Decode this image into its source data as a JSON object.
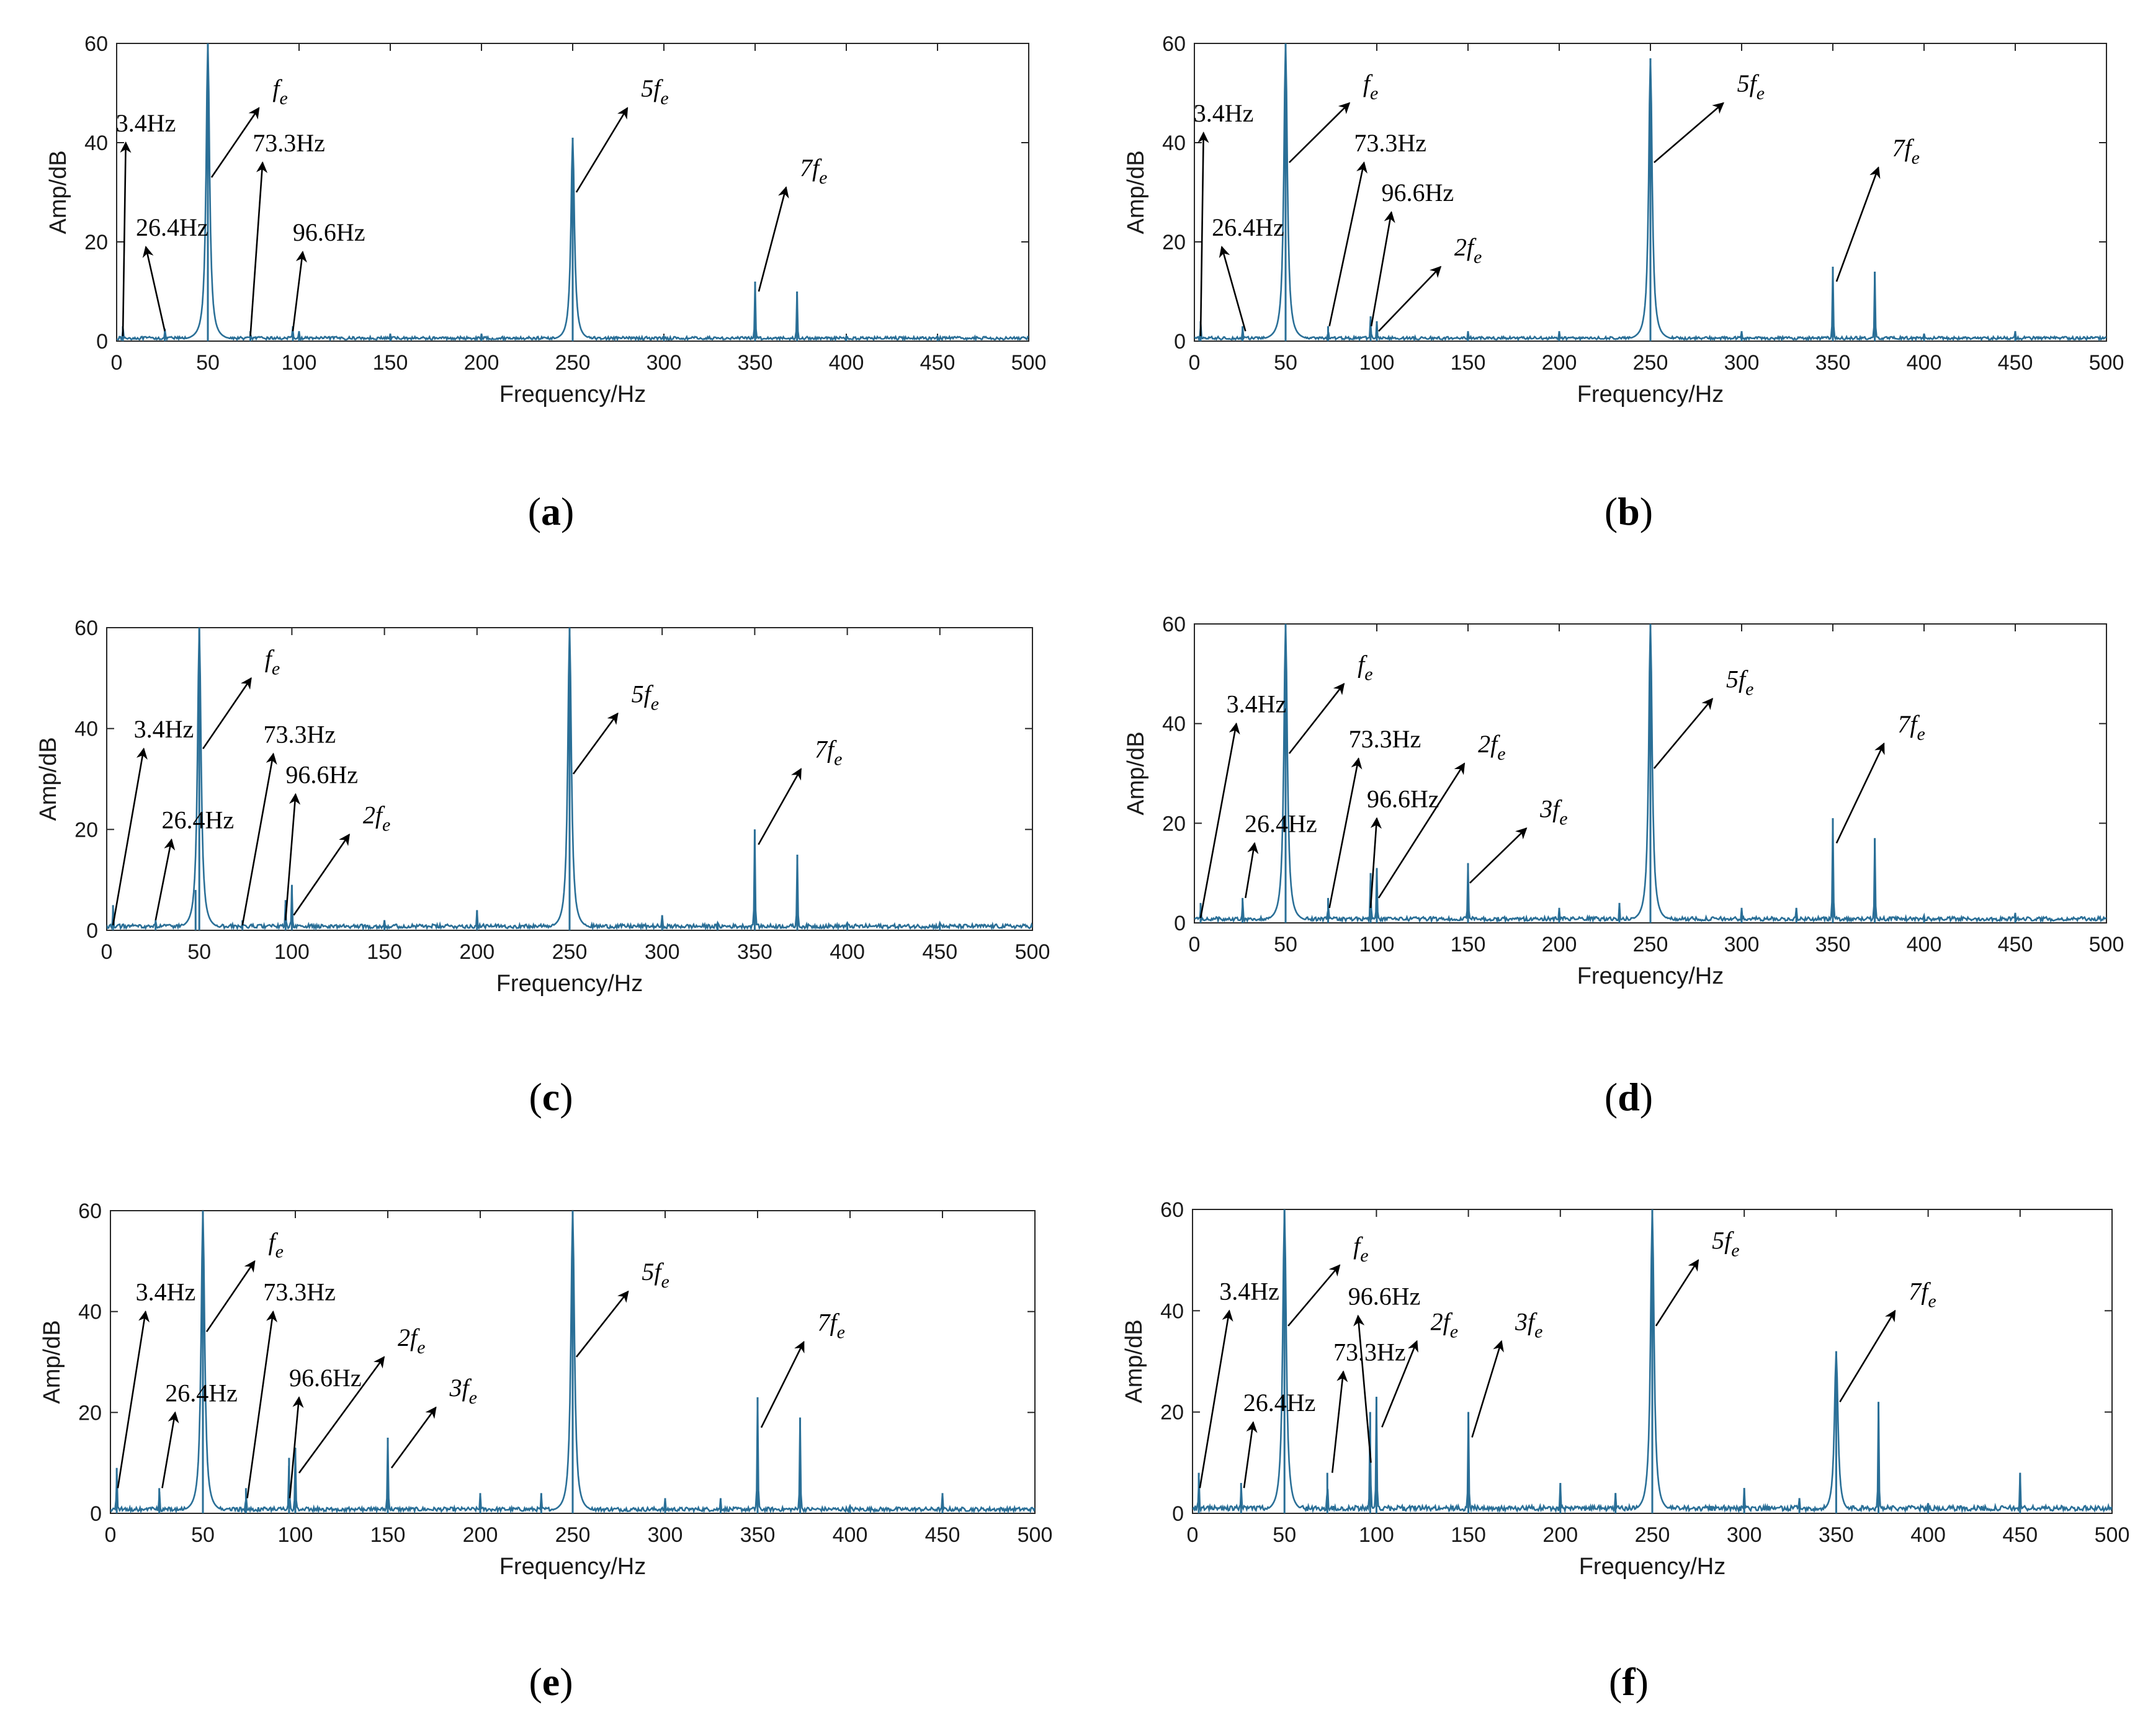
{
  "chart_data": [
    {
      "type": "line",
      "panel_label": "(a)",
      "panel_letter": "a",
      "xlabel": "Frequency/Hz",
      "ylabel": "Amp/dB",
      "xlim": [
        0,
        500
      ],
      "ylim": [
        0,
        60
      ],
      "xticks": [
        0,
        50,
        100,
        150,
        200,
        250,
        300,
        350,
        400,
        450,
        500
      ],
      "yticks": [
        0,
        20,
        40,
        60
      ],
      "color": "#2a6f97",
      "baseline": 0.6,
      "peaks": [
        {
          "x": 3.4,
          "y": 3
        },
        {
          "x": 26.4,
          "y": 2.5
        },
        {
          "x": 50,
          "y": 60
        },
        {
          "x": 73.3,
          "y": 2
        },
        {
          "x": 96.6,
          "y": 3
        },
        {
          "x": 100,
          "y": 2
        },
        {
          "x": 150,
          "y": 1.5
        },
        {
          "x": 200,
          "y": 1.5
        },
        {
          "x": 250,
          "y": 41
        },
        {
          "x": 300,
          "y": 1
        },
        {
          "x": 350,
          "y": 12
        },
        {
          "x": 373,
          "y": 10
        },
        {
          "x": 400,
          "y": 1
        },
        {
          "x": 450,
          "y": 1
        }
      ],
      "annotations": [
        {
          "text": "3.4Hz",
          "x": 3.4,
          "y": 1,
          "lx": 5,
          "ly": 40
        },
        {
          "text": "26.4Hz",
          "x": 26.4,
          "y": 2,
          "lx": 16,
          "ly": 19
        },
        {
          "text": "f",
          "sub": "e",
          "x": 52,
          "y": 33,
          "lx": 78,
          "ly": 47
        },
        {
          "text": "73.3Hz",
          "x": 73.3,
          "y": 1,
          "lx": 80,
          "ly": 36
        },
        {
          "text": "96.6Hz",
          "x": 96.6,
          "y": 2,
          "lx": 102,
          "ly": 18
        },
        {
          "text": "5f",
          "sub": "e",
          "x": 252,
          "y": 30,
          "lx": 280,
          "ly": 47
        },
        {
          "text": "7f",
          "sub": "e",
          "x": 352,
          "y": 10,
          "lx": 367,
          "ly": 31
        }
      ]
    },
    {
      "type": "line",
      "panel_label": "(b)",
      "panel_letter": "b",
      "xlabel": "Frequency/Hz",
      "ylabel": "Amp/dB",
      "xlim": [
        0,
        500
      ],
      "ylim": [
        0,
        60
      ],
      "xticks": [
        0,
        50,
        100,
        150,
        200,
        250,
        300,
        350,
        400,
        450,
        500
      ],
      "yticks": [
        0,
        20,
        40,
        60
      ],
      "color": "#2a6f97",
      "baseline": 0.6,
      "peaks": [
        {
          "x": 3.4,
          "y": 4
        },
        {
          "x": 26.4,
          "y": 3
        },
        {
          "x": 50,
          "y": 60
        },
        {
          "x": 73.3,
          "y": 3
        },
        {
          "x": 96.6,
          "y": 5
        },
        {
          "x": 100,
          "y": 4
        },
        {
          "x": 150,
          "y": 2
        },
        {
          "x": 200,
          "y": 2
        },
        {
          "x": 250,
          "y": 57
        },
        {
          "x": 300,
          "y": 2
        },
        {
          "x": 350,
          "y": 15
        },
        {
          "x": 373,
          "y": 14
        },
        {
          "x": 400,
          "y": 1.5
        },
        {
          "x": 450,
          "y": 2
        }
      ],
      "annotations": [
        {
          "text": "3.4Hz",
          "x": 3.4,
          "y": 1,
          "lx": 5,
          "ly": 42
        },
        {
          "text": "26.4Hz",
          "x": 28,
          "y": 2,
          "lx": 15,
          "ly": 19
        },
        {
          "text": "f",
          "sub": "e",
          "x": 52,
          "y": 36,
          "lx": 85,
          "ly": 48
        },
        {
          "text": "73.3Hz",
          "x": 74,
          "y": 3,
          "lx": 93,
          "ly": 36
        },
        {
          "text": "96.6Hz",
          "x": 97,
          "y": 3,
          "lx": 108,
          "ly": 26
        },
        {
          "text": "2f",
          "sub": "e",
          "x": 101,
          "y": 2,
          "lx": 135,
          "ly": 15
        },
        {
          "text": "5f",
          "sub": "e",
          "x": 252,
          "y": 36,
          "lx": 290,
          "ly": 48
        },
        {
          "text": "7f",
          "sub": "e",
          "x": 352,
          "y": 12,
          "lx": 375,
          "ly": 35
        }
      ]
    },
    {
      "type": "line",
      "panel_label": "(c)",
      "panel_letter": "c",
      "xlabel": "Frequency/Hz",
      "ylabel": "Amp/dB",
      "xlim": [
        0,
        500
      ],
      "ylim": [
        0,
        60
      ],
      "xticks": [
        0,
        50,
        100,
        150,
        200,
        250,
        300,
        350,
        400,
        450,
        500
      ],
      "yticks": [
        0,
        20,
        40,
        60
      ],
      "color": "#2a6f97",
      "baseline": 0.8,
      "peaks": [
        {
          "x": 3.4,
          "y": 5
        },
        {
          "x": 26.4,
          "y": 2
        },
        {
          "x": 48,
          "y": 8
        },
        {
          "x": 50,
          "y": 60
        },
        {
          "x": 73.3,
          "y": 2
        },
        {
          "x": 96.6,
          "y": 6
        },
        {
          "x": 100,
          "y": 9
        },
        {
          "x": 150,
          "y": 2
        },
        {
          "x": 200,
          "y": 4
        },
        {
          "x": 250,
          "y": 60
        },
        {
          "x": 300,
          "y": 3
        },
        {
          "x": 330,
          "y": 1.5
        },
        {
          "x": 350,
          "y": 20
        },
        {
          "x": 373,
          "y": 15
        },
        {
          "x": 400,
          "y": 1.5
        },
        {
          "x": 450,
          "y": 1.5
        }
      ],
      "annotations": [
        {
          "text": "3.4Hz",
          "x": 3.4,
          "y": 1,
          "lx": 20,
          "ly": 36
        },
        {
          "text": "26.4Hz",
          "x": 26.4,
          "y": 2,
          "lx": 35,
          "ly": 18
        },
        {
          "text": "f",
          "sub": "e",
          "x": 52,
          "y": 36,
          "lx": 78,
          "ly": 50
        },
        {
          "text": "73.3Hz",
          "x": 73.3,
          "y": 1,
          "lx": 90,
          "ly": 35
        },
        {
          "text": "96.6Hz",
          "x": 96.6,
          "y": 2,
          "lx": 102,
          "ly": 27
        },
        {
          "text": "2f",
          "sub": "e",
          "x": 101,
          "y": 3,
          "lx": 131,
          "ly": 19
        },
        {
          "text": "5f",
          "sub": "e",
          "x": 252,
          "y": 31,
          "lx": 276,
          "ly": 43
        },
        {
          "text": "7f",
          "sub": "e",
          "x": 352,
          "y": 17,
          "lx": 375,
          "ly": 32
        }
      ]
    },
    {
      "type": "line",
      "panel_label": "(d)",
      "panel_letter": "d",
      "xlabel": "Frequency/Hz",
      "ylabel": "Amp/dB",
      "xlim": [
        0,
        500
      ],
      "ylim": [
        0,
        60
      ],
      "xticks": [
        0,
        50,
        100,
        150,
        200,
        250,
        300,
        350,
        400,
        450,
        500
      ],
      "yticks": [
        0,
        20,
        40,
        60
      ],
      "color": "#2a6f97",
      "baseline": 0.8,
      "peaks": [
        {
          "x": 3.4,
          "y": 4
        },
        {
          "x": 26.4,
          "y": 5
        },
        {
          "x": 50,
          "y": 60
        },
        {
          "x": 73.3,
          "y": 5
        },
        {
          "x": 96.6,
          "y": 10
        },
        {
          "x": 100,
          "y": 11
        },
        {
          "x": 150,
          "y": 12
        },
        {
          "x": 200,
          "y": 3
        },
        {
          "x": 233,
          "y": 4
        },
        {
          "x": 250,
          "y": 60
        },
        {
          "x": 300,
          "y": 3
        },
        {
          "x": 330,
          "y": 3
        },
        {
          "x": 350,
          "y": 21
        },
        {
          "x": 373,
          "y": 17
        },
        {
          "x": 400,
          "y": 1.5
        },
        {
          "x": 450,
          "y": 2
        }
      ],
      "annotations": [
        {
          "text": "3.4Hz",
          "x": 3.4,
          "y": 1,
          "lx": 23,
          "ly": 40
        },
        {
          "text": "26.4Hz",
          "x": 28,
          "y": 5,
          "lx": 33,
          "ly": 16
        },
        {
          "text": "f",
          "sub": "e",
          "x": 52,
          "y": 34,
          "lx": 82,
          "ly": 48
        },
        {
          "text": "73.3Hz",
          "x": 74,
          "y": 3,
          "lx": 90,
          "ly": 33
        },
        {
          "text": "96.6Hz",
          "x": 96.6,
          "y": 3,
          "lx": 100,
          "ly": 21
        },
        {
          "text": "2f",
          "sub": "e",
          "x": 101,
          "y": 5,
          "lx": 148,
          "ly": 32
        },
        {
          "text": "3f",
          "sub": "e",
          "x": 151,
          "y": 8,
          "lx": 182,
          "ly": 19
        },
        {
          "text": "5f",
          "sub": "e",
          "x": 252,
          "y": 31,
          "lx": 284,
          "ly": 45
        },
        {
          "text": "7f",
          "sub": "e",
          "x": 352,
          "y": 16,
          "lx": 378,
          "ly": 36
        }
      ]
    },
    {
      "type": "line",
      "panel_label": "(e)",
      "panel_letter": "e",
      "xlabel": "Frequency/Hz",
      "ylabel": "Amp/dB",
      "xlim": [
        0,
        500
      ],
      "ylim": [
        0,
        60
      ],
      "xticks": [
        0,
        50,
        100,
        150,
        200,
        250,
        300,
        350,
        400,
        450,
        500
      ],
      "yticks": [
        0,
        20,
        40,
        60
      ],
      "color": "#2a6f97",
      "baseline": 0.8,
      "peaks": [
        {
          "x": 3.4,
          "y": 9
        },
        {
          "x": 26.4,
          "y": 5
        },
        {
          "x": 50,
          "y": 60
        },
        {
          "x": 73.3,
          "y": 5
        },
        {
          "x": 96.6,
          "y": 11
        },
        {
          "x": 100,
          "y": 13
        },
        {
          "x": 150,
          "y": 15
        },
        {
          "x": 200,
          "y": 4
        },
        {
          "x": 233,
          "y": 4
        },
        {
          "x": 250,
          "y": 60
        },
        {
          "x": 300,
          "y": 3
        },
        {
          "x": 330,
          "y": 3
        },
        {
          "x": 350,
          "y": 23
        },
        {
          "x": 373,
          "y": 19
        },
        {
          "x": 400,
          "y": 1.5
        },
        {
          "x": 450,
          "y": 4
        }
      ],
      "annotations": [
        {
          "text": "3.4Hz",
          "x": 4,
          "y": 5,
          "lx": 19,
          "ly": 40
        },
        {
          "text": "26.4Hz",
          "x": 28,
          "y": 5,
          "lx": 35,
          "ly": 20
        },
        {
          "text": "f",
          "sub": "e",
          "x": 52,
          "y": 36,
          "lx": 78,
          "ly": 50
        },
        {
          "text": "73.3Hz",
          "x": 74,
          "y": 3,
          "lx": 88,
          "ly": 40
        },
        {
          "text": "96.6Hz",
          "x": 97,
          "y": 3,
          "lx": 102,
          "ly": 23
        },
        {
          "text": "2f",
          "sub": "e",
          "x": 102,
          "y": 8,
          "lx": 148,
          "ly": 31
        },
        {
          "text": "3f",
          "sub": "e",
          "x": 152,
          "y": 9,
          "lx": 176,
          "ly": 21
        },
        {
          "text": "5f",
          "sub": "e",
          "x": 252,
          "y": 31,
          "lx": 280,
          "ly": 44
        },
        {
          "text": "7f",
          "sub": "e",
          "x": 352,
          "y": 17,
          "lx": 375,
          "ly": 34
        }
      ]
    },
    {
      "type": "line",
      "panel_label": "(f)",
      "panel_letter": "f",
      "xlabel": "Frequency/Hz",
      "ylabel": "Amp/dB",
      "xlim": [
        0,
        500
      ],
      "ylim": [
        0,
        60
      ],
      "xticks": [
        0,
        50,
        100,
        150,
        200,
        250,
        300,
        350,
        400,
        450,
        500
      ],
      "yticks": [
        0,
        20,
        40,
        60
      ],
      "color": "#2a6f97",
      "baseline": 1.0,
      "peaks": [
        {
          "x": 3.4,
          "y": 8
        },
        {
          "x": 26.4,
          "y": 6
        },
        {
          "x": 50,
          "y": 60
        },
        {
          "x": 73.3,
          "y": 8
        },
        {
          "x": 96.6,
          "y": 20
        },
        {
          "x": 100,
          "y": 23
        },
        {
          "x": 150,
          "y": 20
        },
        {
          "x": 200,
          "y": 6
        },
        {
          "x": 230,
          "y": 4
        },
        {
          "x": 250,
          "y": 60
        },
        {
          "x": 300,
          "y": 5
        },
        {
          "x": 330,
          "y": 3
        },
        {
          "x": 350,
          "y": 32
        },
        {
          "x": 373,
          "y": 22
        },
        {
          "x": 400,
          "y": 2
        },
        {
          "x": 450,
          "y": 8
        }
      ],
      "annotations": [
        {
          "text": "3.4Hz",
          "x": 4,
          "y": 5,
          "lx": 20,
          "ly": 40
        },
        {
          "text": "26.4Hz",
          "x": 28,
          "y": 5,
          "lx": 33,
          "ly": 18
        },
        {
          "text": "f",
          "sub": "e",
          "x": 52,
          "y": 37,
          "lx": 80,
          "ly": 49
        },
        {
          "text": "73.3Hz",
          "x": 76,
          "y": 8,
          "lx": 82,
          "ly": 28
        },
        {
          "text": "96.6Hz",
          "x": 97,
          "y": 10,
          "lx": 90,
          "ly": 39
        },
        {
          "text": "2f",
          "sub": "e",
          "x": 103,
          "y": 17,
          "lx": 122,
          "ly": 34
        },
        {
          "text": "3f",
          "sub": "e",
          "x": 152,
          "y": 15,
          "lx": 168,
          "ly": 34
        },
        {
          "text": "5f",
          "sub": "e",
          "x": 252,
          "y": 37,
          "lx": 275,
          "ly": 50
        },
        {
          "text": "7f",
          "sub": "e",
          "x": 352,
          "y": 22,
          "lx": 382,
          "ly": 40
        }
      ]
    }
  ]
}
